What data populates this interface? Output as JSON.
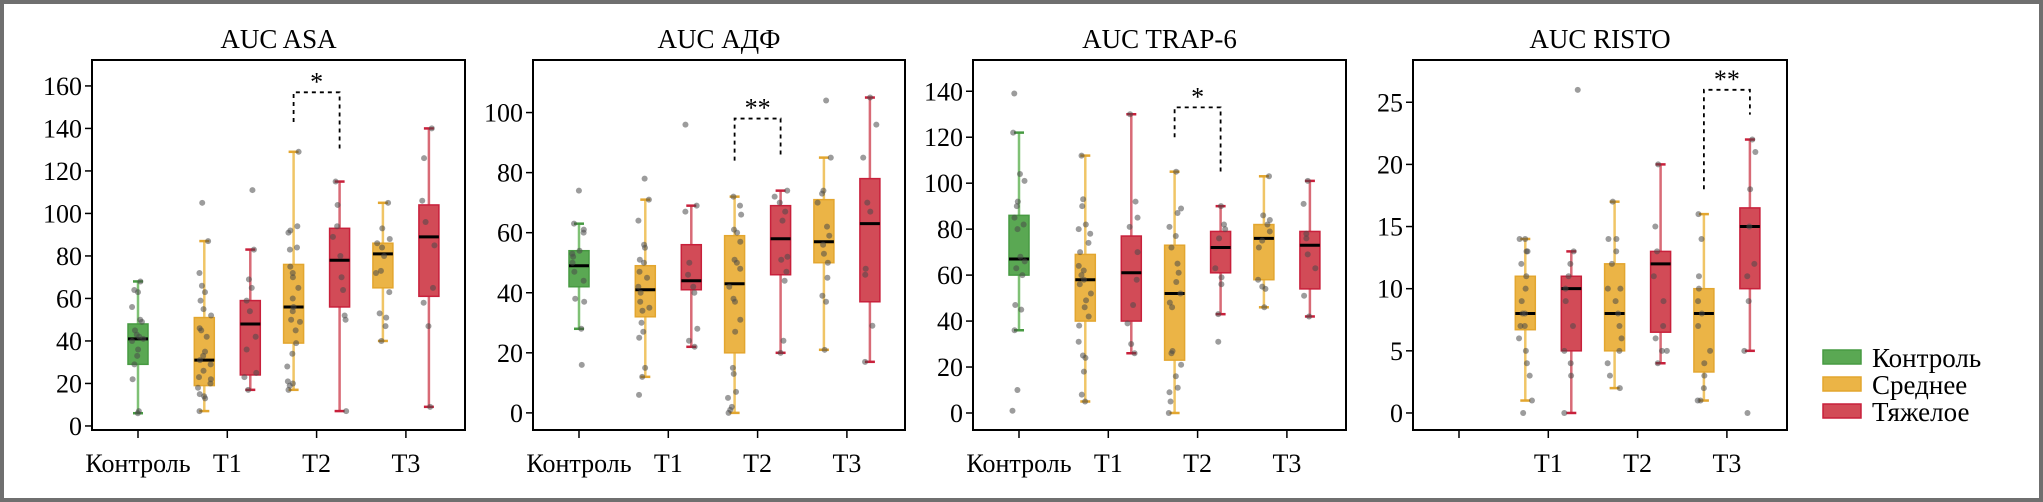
{
  "chart_data": [
    {
      "type": "box",
      "title": "AUC ASA",
      "ylim": [
        -1.9,
        172.2
      ],
      "yticks": [
        0,
        20,
        40,
        60,
        80,
        100,
        120,
        140,
        160
      ],
      "categories": [
        "Контроль",
        "T1",
        "T2",
        "T3"
      ],
      "groups": [
        {
          "category": "Контроль",
          "series": "Контроль",
          "whisker_low": 6,
          "q1": 29,
          "median": 41,
          "q3": 48,
          "whisker_high": 68,
          "points": [
            6,
            7,
            22,
            29,
            33,
            36,
            40,
            41,
            42,
            43,
            45,
            49,
            50,
            56,
            63,
            64,
            68
          ]
        },
        {
          "category": "T1",
          "series": "Среднее",
          "whisker_low": 7,
          "q1": 19,
          "median": 31,
          "q3": 51,
          "whisker_high": 87,
          "points": [
            7,
            13,
            14,
            15,
            18,
            20,
            22,
            23,
            26,
            29,
            31,
            33,
            35,
            42,
            45,
            46,
            52,
            55,
            59,
            63,
            66,
            72,
            87,
            105
          ]
        },
        {
          "category": "T1",
          "series": "Тяжелое",
          "whisker_low": 17,
          "q1": 24,
          "median": 48,
          "q3": 59,
          "whisker_high": 83,
          "points": [
            17,
            23,
            25,
            36,
            42,
            54,
            59,
            65,
            69,
            83,
            111
          ]
        },
        {
          "category": "T2",
          "series": "Среднее",
          "whisker_low": 17,
          "q1": 39,
          "median": 56,
          "q3": 76,
          "whisker_high": 129,
          "points": [
            17,
            19,
            20,
            21,
            28,
            34,
            39,
            45,
            49,
            50,
            54,
            56,
            60,
            65,
            70,
            72,
            75,
            83,
            84,
            91,
            92,
            94,
            129
          ]
        },
        {
          "category": "T2",
          "series": "Тяжелое",
          "whisker_low": 7,
          "q1": 56,
          "median": 78,
          "q3": 93,
          "whisker_high": 115,
          "points": [
            7,
            50,
            52,
            64,
            70,
            80,
            89,
            94,
            104,
            115
          ]
        },
        {
          "category": "T3",
          "series": "Среднее",
          "whisker_low": 40,
          "q1": 65,
          "median": 81,
          "q3": 86,
          "whisker_high": 105,
          "points": [
            40,
            47,
            51,
            53,
            63,
            72,
            73,
            80,
            84,
            86,
            88,
            93,
            105
          ]
        },
        {
          "category": "T3",
          "series": "Тяжелое",
          "whisker_low": 9,
          "q1": 61,
          "median": 89,
          "q3": 104,
          "whisker_high": 140,
          "points": [
            9,
            47,
            58,
            65,
            85,
            96,
            106,
            126,
            140
          ]
        }
      ],
      "significance": [
        {
          "category": "T2",
          "label": "*",
          "top": 157,
          "left_end": 143,
          "right_end": 129
        }
      ]
    },
    {
      "type": "box",
      "title": "AUC АДФ",
      "ylim": [
        -5.7,
        117.5
      ],
      "yticks": [
        0,
        20,
        40,
        60,
        80,
        100
      ],
      "categories": [
        "Контроль",
        "T1",
        "T2",
        "T3"
      ],
      "groups": [
        {
          "category": "Контроль",
          "series": "Контроль",
          "whisker_low": 28,
          "q1": 42,
          "median": 49,
          "q3": 54,
          "whisker_high": 63,
          "points": [
            16,
            28,
            37,
            38,
            44,
            47,
            50,
            52,
            53,
            54,
            60,
            61,
            63,
            74
          ]
        },
        {
          "category": "T1",
          "series": "Среднее",
          "whisker_low": 12,
          "q1": 32,
          "median": 41,
          "q3": 49,
          "whisker_high": 71,
          "points": [
            6,
            12,
            15,
            25,
            27,
            30,
            34,
            35,
            37,
            40,
            42,
            45,
            47,
            50,
            51,
            55,
            56,
            64,
            71,
            78
          ]
        },
        {
          "category": "T1",
          "series": "Тяжелое",
          "whisker_low": 22,
          "q1": 41,
          "median": 44,
          "q3": 56,
          "whisker_high": 69,
          "points": [
            22,
            24,
            28,
            40,
            42,
            46,
            50,
            67,
            69,
            96
          ]
        },
        {
          "category": "T2",
          "series": "Среднее",
          "whisker_low": 0,
          "q1": 20,
          "median": 43,
          "q3": 59,
          "whisker_high": 72,
          "points": [
            0,
            1,
            2,
            5,
            7,
            13,
            15,
            27,
            31,
            37,
            38,
            42,
            48,
            50,
            51,
            57,
            60,
            61,
            66,
            69,
            72
          ]
        },
        {
          "category": "T2",
          "series": "Тяжелое",
          "whisker_low": 20,
          "q1": 46,
          "median": 58,
          "q3": 69,
          "whisker_high": 74,
          "points": [
            20,
            24,
            44,
            47,
            51,
            52,
            64,
            67,
            70,
            72,
            74
          ]
        },
        {
          "category": "T3",
          "series": "Среднее",
          "whisker_low": 21,
          "q1": 50,
          "median": 57,
          "q3": 71,
          "whisker_high": 85,
          "points": [
            21,
            37,
            39,
            45,
            50,
            53,
            56,
            59,
            62,
            70,
            73,
            74,
            85,
            104
          ]
        },
        {
          "category": "T3",
          "series": "Тяжелое",
          "whisker_low": 17,
          "q1": 37,
          "median": 63,
          "q3": 78,
          "whisker_high": 105,
          "points": [
            17,
            29,
            46,
            48,
            67,
            70,
            85,
            96,
            105
          ]
        }
      ],
      "significance": [
        {
          "category": "T2",
          "label": "**",
          "top": 98,
          "left_end": 84,
          "right_end": 86
        }
      ]
    },
    {
      "type": "box",
      "title": "AUC TRAP-6",
      "ylim": [
        -7.4,
        153.6
      ],
      "yticks": [
        0,
        20,
        40,
        60,
        80,
        100,
        120,
        140
      ],
      "categories": [
        "Контроль",
        "T1",
        "T2",
        "T3"
      ],
      "groups": [
        {
          "category": "Контроль",
          "series": "Контроль",
          "whisker_low": 36,
          "q1": 60,
          "median": 67,
          "q3": 86,
          "whisker_high": 122,
          "points": [
            1,
            10,
            36,
            45,
            47,
            60,
            63,
            66,
            68,
            80,
            82,
            85,
            90,
            92,
            101,
            104,
            122,
            139
          ]
        },
        {
          "category": "T1",
          "series": "Среднее",
          "whisker_low": 5,
          "q1": 40,
          "median": 58,
          "q3": 69,
          "whisker_high": 112,
          "points": [
            5,
            8,
            18,
            24,
            25,
            31,
            38,
            42,
            46,
            49,
            52,
            56,
            58,
            60,
            62,
            64,
            70,
            74,
            78,
            80,
            82,
            90,
            93,
            112
          ]
        },
        {
          "category": "T1",
          "series": "Тяжелое",
          "whisker_low": 26,
          "q1": 40,
          "median": 61,
          "q3": 77,
          "whisker_high": 130,
          "points": [
            26,
            30,
            39,
            47,
            58,
            70,
            81,
            85,
            92,
            130
          ]
        },
        {
          "category": "T2",
          "series": "Среднее",
          "whisker_low": 0,
          "q1": 23,
          "median": 52,
          "q3": 73,
          "whisker_high": 105,
          "points": [
            0,
            5,
            9,
            11,
            16,
            21,
            26,
            27,
            46,
            48,
            52,
            57,
            61,
            65,
            72,
            77,
            81,
            87,
            89,
            105
          ]
        },
        {
          "category": "T2",
          "series": "Тяжелое",
          "whisker_low": 43,
          "q1": 61,
          "median": 72,
          "q3": 79,
          "whisker_high": 90,
          "points": [
            31,
            43,
            56,
            59,
            63,
            76,
            80,
            82,
            90
          ]
        },
        {
          "category": "T3",
          "series": "Среднее",
          "whisker_low": 46,
          "q1": 58,
          "median": 76,
          "q3": 82,
          "whisker_high": 103,
          "points": [
            46,
            54,
            55,
            58,
            72,
            75,
            79,
            82,
            84,
            86,
            103
          ]
        },
        {
          "category": "T3",
          "series": "Тяжелое",
          "whisker_low": 42,
          "q1": 54,
          "median": 73,
          "q3": 79,
          "whisker_high": 101,
          "points": [
            42,
            51,
            63,
            69,
            76,
            78,
            91,
            101
          ]
        }
      ],
      "significance": [
        {
          "category": "T2",
          "label": "*",
          "top": 133,
          "left_end": 120,
          "right_end": 104
        }
      ]
    },
    {
      "type": "box",
      "title": "AUC RISTO",
      "ylim": [
        -1.37,
        28.4
      ],
      "yticks": [
        0,
        5,
        10,
        15,
        20,
        25
      ],
      "categories": [
        "",
        "T1",
        "T2",
        "T3"
      ],
      "groups": [
        {
          "category": "T1",
          "series": "Среднее",
          "whisker_low": 1,
          "q1": 6.7,
          "median": 8,
          "q3": 11,
          "whisker_high": 14,
          "points": [
            0,
            1,
            3,
            4,
            5,
            6,
            7,
            7,
            8,
            8,
            9,
            10,
            11,
            12,
            13,
            13,
            14,
            14
          ]
        },
        {
          "category": "T1",
          "series": "Тяжелое",
          "whisker_low": 0,
          "q1": 5,
          "median": 10,
          "q3": 11,
          "whisker_high": 13,
          "points": [
            0,
            3,
            4,
            5,
            7,
            9,
            10,
            11,
            12,
            13,
            26
          ]
        },
        {
          "category": "T2",
          "series": "Среднее",
          "whisker_low": 2,
          "q1": 5,
          "median": 8,
          "q3": 12,
          "whisker_high": 17,
          "points": [
            2,
            3,
            4,
            5,
            6,
            7,
            8,
            9,
            10,
            10,
            12,
            13,
            14,
            14,
            17
          ]
        },
        {
          "category": "T2",
          "series": "Тяжелое",
          "whisker_low": 4,
          "q1": 6.5,
          "median": 12,
          "q3": 13,
          "whisker_high": 20,
          "points": [
            4,
            5,
            5,
            6,
            7,
            9,
            11,
            13,
            15,
            20
          ]
        },
        {
          "category": "T3",
          "series": "Среднее",
          "whisker_low": 1,
          "q1": 3.3,
          "median": 8,
          "q3": 10,
          "whisker_high": 16,
          "points": [
            1,
            1,
            2,
            3,
            4,
            5,
            7,
            8,
            9,
            10,
            11,
            14,
            16
          ]
        },
        {
          "category": "T3",
          "series": "Тяжелое",
          "whisker_low": 5,
          "q1": 10,
          "median": 15,
          "q3": 16.5,
          "whisker_high": 22,
          "points": [
            0,
            5,
            9,
            11,
            12,
            15,
            18,
            21,
            22
          ]
        }
      ],
      "significance": [
        {
          "category": "T3",
          "label": "**",
          "top": 26,
          "left_end": 18,
          "right_end": 24
        }
      ]
    }
  ],
  "legend": {
    "placement": "right",
    "items": [
      {
        "label": "Контроль",
        "fill": "#5aa853",
        "stroke": "#479a42"
      },
      {
        "label": "Среднее",
        "fill": "#ebb446",
        "stroke": "#e3a62f"
      },
      {
        "label": "Тяжелое",
        "fill": "#d24b57",
        "stroke": "#c8203b"
      }
    ]
  },
  "colors": {
    "Контроль": {
      "fill": "#5aa853",
      "stroke": "#479a42",
      "whisker": "#7fc175"
    },
    "Среднее": {
      "fill": "#ebb446",
      "stroke": "#e3a62f",
      "whisker": "#f0c566"
    },
    "Тяжелое": {
      "fill": "#d24b57",
      "stroke": "#c8203b",
      "whisker": "#d86a76"
    },
    "point": "#4a4a4a",
    "median": "#000000"
  }
}
